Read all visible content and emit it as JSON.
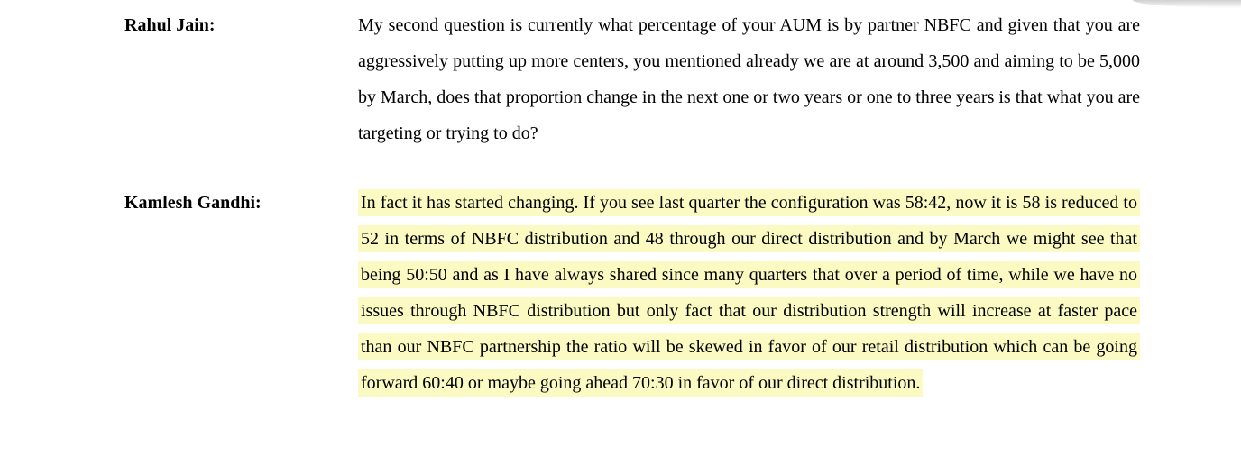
{
  "page": {
    "background_color": "#ffffff",
    "text_color": "#000000",
    "highlight_color": "#fafac2"
  },
  "transcript": {
    "entries": [
      {
        "speaker": "Rahul Jain:",
        "highlighted": false,
        "text": "My second question is currently what percentage of your AUM is by partner NBFC and given that you are aggressively putting up more centers, you mentioned already we are at around 3,500 and aiming to be 5,000 by March, does that proportion change in the next one or two years or one to three years is that what you are targeting or trying to do?"
      },
      {
        "speaker": "Kamlesh Gandhi:",
        "highlighted": true,
        "text": "In fact it has started changing. If you see last quarter the configuration was 58:42, now it is 58 is reduced to 52 in terms of NBFC distribution and 48 through our direct distribution and by March we might see that being 50:50 and as I have always shared since many quarters that over a period of time, while we have no issues through NBFC distribution but only fact that our distribution strength will increase at faster pace than our NBFC partnership the ratio will be skewed in favor of our retail distribution which can be going forward 60:40 or maybe going ahead 70:30 in favor of our direct distribution."
      }
    ]
  }
}
